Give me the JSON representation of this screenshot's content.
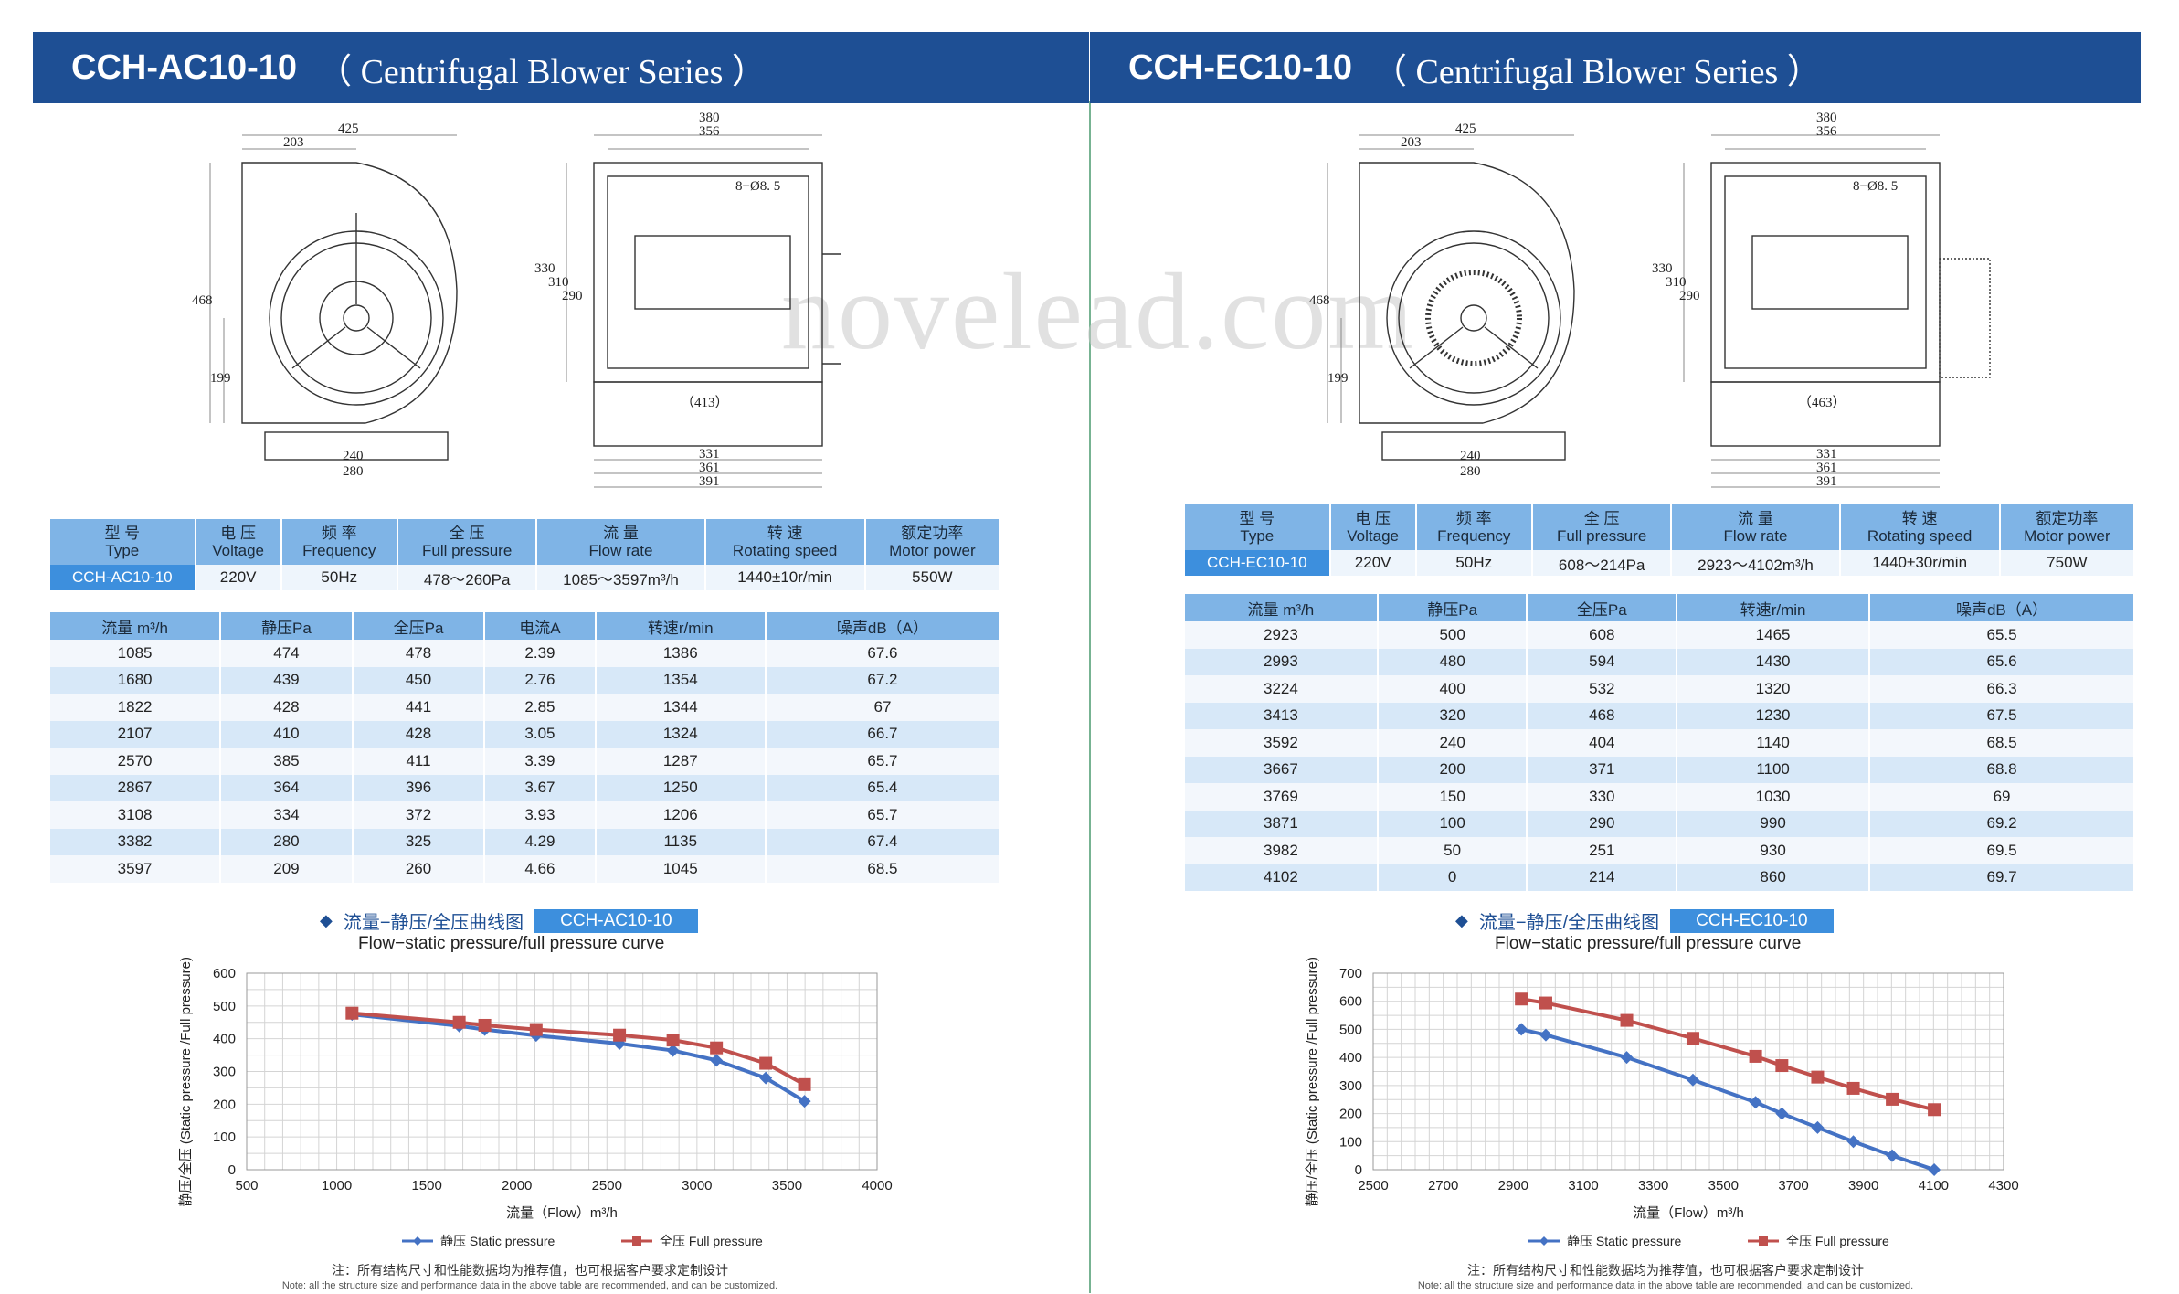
{
  "watermark": "novelead.com",
  "left": {
    "header": {
      "model": "CCH-AC10-10",
      "series": "（ Centrifugal Blower Series ）"
    },
    "dims": {
      "w425": "425",
      "w203": "203",
      "h468": "468",
      "h199": "199",
      "b240": "240",
      "b280": "280",
      "t380": "380",
      "t356": "356",
      "hole": "8−Ø8. 5",
      "s330": "330",
      "s310": "310",
      "s290": "290",
      "mid": "（413）",
      "d331": "331",
      "d361": "361",
      "d391": "391"
    },
    "spec": {
      "headers": [
        {
          "cn": "型 号",
          "en": "Type"
        },
        {
          "cn": "电 压",
          "en": "Voltage"
        },
        {
          "cn": "频 率",
          "en": "Frequency"
        },
        {
          "cn": "全 压",
          "en": "Full pressure"
        },
        {
          "cn": "流 量",
          "en": "Flow rate"
        },
        {
          "cn": "转 速",
          "en": "Rotating speed"
        },
        {
          "cn": "额定功率",
          "en": "Motor power"
        }
      ],
      "values": [
        "CCH-AC10-10",
        "220V",
        "50Hz",
        "478～260Pa",
        "1085～3597m³/h",
        "1440±10r/min",
        "550W"
      ]
    },
    "perf": {
      "headers": [
        "流量 m³/h",
        "静压Pa",
        "全压Pa",
        "电流A",
        "转速r/min",
        "噪声dB（A）"
      ],
      "rows": [
        [
          "1085",
          "474",
          "478",
          "2.39",
          "1386",
          "67.6"
        ],
        [
          "1680",
          "439",
          "450",
          "2.76",
          "1354",
          "67.2"
        ],
        [
          "1822",
          "428",
          "441",
          "2.85",
          "1344",
          "67"
        ],
        [
          "2107",
          "410",
          "428",
          "3.05",
          "1324",
          "66.7"
        ],
        [
          "2570",
          "385",
          "411",
          "3.39",
          "1287",
          "65.7"
        ],
        [
          "2867",
          "364",
          "396",
          "3.67",
          "1250",
          "65.4"
        ],
        [
          "3108",
          "334",
          "372",
          "3.93",
          "1206",
          "65.7"
        ],
        [
          "3382",
          "280",
          "325",
          "4.29",
          "1135",
          "67.4"
        ],
        [
          "3597",
          "209",
          "260",
          "4.66",
          "1045",
          "68.5"
        ]
      ]
    },
    "curve": {
      "title_cn": "流量−静压/全压曲线图",
      "model": "CCH-AC10-10",
      "title_en": "Flow−static pressure/full pressure curve"
    },
    "chart_data": {
      "type": "line",
      "xlabel": "流量（Flow）m³/h",
      "ylabel": "静压/全压 (Static pressure /Full pressure) Pa",
      "xlim": [
        500,
        4000
      ],
      "ylim": [
        0,
        600
      ],
      "xticks": [
        500,
        1000,
        1500,
        2000,
        2500,
        3000,
        3500,
        4000
      ],
      "yticks": [
        0,
        100,
        200,
        300,
        400,
        500,
        600
      ],
      "grid": true,
      "legend": "bottom",
      "series": [
        {
          "name": "静压 Static pressure",
          "color": "#4472c4",
          "marker": "diamond",
          "x": [
            1085,
            1680,
            1822,
            2107,
            2570,
            2867,
            3108,
            3382,
            3597
          ],
          "y": [
            474,
            439,
            428,
            410,
            385,
            364,
            334,
            280,
            209
          ]
        },
        {
          "name": "全压 Full pressure",
          "color": "#c0504d",
          "marker": "square",
          "x": [
            1085,
            1680,
            1822,
            2107,
            2570,
            2867,
            3108,
            3382,
            3597
          ],
          "y": [
            478,
            450,
            441,
            428,
            411,
            396,
            372,
            325,
            260
          ]
        }
      ]
    },
    "note": {
      "cn": "注：所有结构尺寸和性能数据均为推荐值，也可根据客户要求定制设计",
      "en": "Note: all the structure size and performance data in the above table are recommended, and can be customized."
    }
  },
  "right": {
    "header": {
      "model": "CCH-EC10-10",
      "series": "（ Centrifugal Blower Series ）"
    },
    "dims": {
      "w425": "425",
      "w203": "203",
      "h468": "468",
      "h199": "199",
      "b240": "240",
      "b280": "280",
      "t380": "380",
      "t356": "356",
      "hole": "8−Ø8. 5",
      "s330": "330",
      "s310": "310",
      "s290": "290",
      "mid": "（463）",
      "d331": "331",
      "d361": "361",
      "d391": "391"
    },
    "spec": {
      "headers": [
        {
          "cn": "型 号",
          "en": "Type"
        },
        {
          "cn": "电 压",
          "en": "Voltage"
        },
        {
          "cn": "频 率",
          "en": "Frequency"
        },
        {
          "cn": "全 压",
          "en": "Full pressure"
        },
        {
          "cn": "流 量",
          "en": "Flow rate"
        },
        {
          "cn": "转 速",
          "en": "Rotating speed"
        },
        {
          "cn": "额定功率",
          "en": "Motor power"
        }
      ],
      "values": [
        "CCH-EC10-10",
        "220V",
        "50Hz",
        "608～214Pa",
        "2923～4102m³/h",
        "1440±30r/min",
        "750W"
      ]
    },
    "perf": {
      "headers": [
        "流量 m³/h",
        "静压Pa",
        "全压Pa",
        "转速r/min",
        "噪声dB（A）"
      ],
      "rows": [
        [
          "2923",
          "500",
          "608",
          "1465",
          "65.5"
        ],
        [
          "2993",
          "480",
          "594",
          "1430",
          "65.6"
        ],
        [
          "3224",
          "400",
          "532",
          "1320",
          "66.3"
        ],
        [
          "3413",
          "320",
          "468",
          "1230",
          "67.5"
        ],
        [
          "3592",
          "240",
          "404",
          "1140",
          "68.5"
        ],
        [
          "3667",
          "200",
          "371",
          "1100",
          "68.8"
        ],
        [
          "3769",
          "150",
          "330",
          "1030",
          "69"
        ],
        [
          "3871",
          "100",
          "290",
          "990",
          "69.2"
        ],
        [
          "3982",
          "50",
          "251",
          "930",
          "69.5"
        ],
        [
          "4102",
          "0",
          "214",
          "860",
          "69.7"
        ]
      ]
    },
    "curve": {
      "title_cn": "流量−静压/全压曲线图",
      "model": "CCH-EC10-10",
      "title_en": "Flow−static pressure/full pressure curve"
    },
    "chart_data": {
      "type": "line",
      "xlabel": "流量（Flow）m³/h",
      "ylabel": "静压/全压 (Static pressure /Full pressure) Pa",
      "xlim": [
        2500,
        4300
      ],
      "ylim": [
        0,
        700
      ],
      "xticks": [
        2500,
        2700,
        2900,
        3100,
        3300,
        3500,
        3700,
        3900,
        4100,
        4300
      ],
      "yticks": [
        0,
        100,
        200,
        300,
        400,
        500,
        600,
        700
      ],
      "grid": true,
      "legend": "bottom",
      "series": [
        {
          "name": "静压 Static pressure",
          "color": "#4472c4",
          "marker": "diamond",
          "x": [
            2923,
            2993,
            3224,
            3413,
            3592,
            3667,
            3769,
            3871,
            3982,
            4102
          ],
          "y": [
            500,
            480,
            400,
            320,
            240,
            200,
            150,
            100,
            50,
            0
          ]
        },
        {
          "name": "全压 Full pressure",
          "color": "#c0504d",
          "marker": "square",
          "x": [
            2923,
            2993,
            3224,
            3413,
            3592,
            3667,
            3769,
            3871,
            3982,
            4102
          ],
          "y": [
            608,
            594,
            532,
            468,
            404,
            371,
            330,
            290,
            251,
            214
          ]
        }
      ]
    },
    "note": {
      "cn": "注：所有结构尺寸和性能数据均为推荐值，也可根据客户要求定制设计",
      "en": "Note: all the structure size and performance data in the above table are recommended, and can be customized."
    }
  }
}
